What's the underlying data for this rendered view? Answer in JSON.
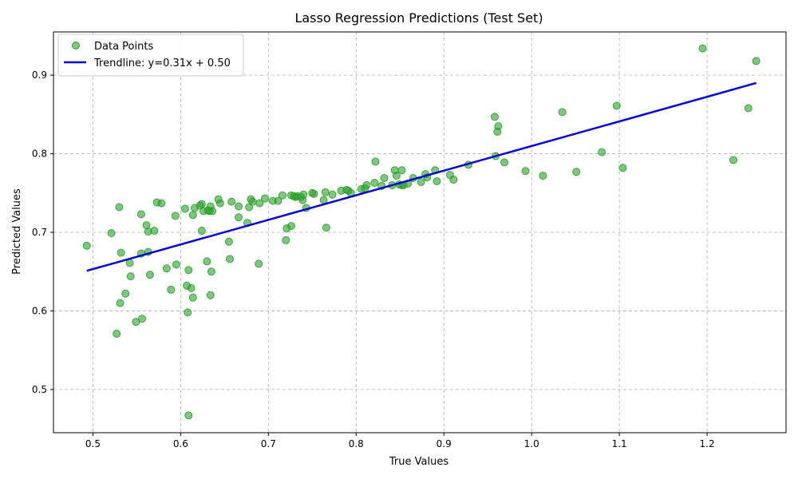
{
  "chart_data": {
    "type": "scatter",
    "title": "Lasso Regression Predictions (Test Set)",
    "xlabel": "True Values",
    "ylabel": "Predicted Values",
    "xlim": [
      0.455,
      1.29
    ],
    "ylim": [
      0.445,
      0.955
    ],
    "xticks": [
      0.5,
      0.6,
      0.7,
      0.8,
      0.9,
      1.0,
      1.1,
      1.2
    ],
    "yticks": [
      0.5,
      0.6,
      0.7,
      0.8,
      0.9
    ],
    "xtick_labels": [
      "0.5",
      "0.6",
      "0.7",
      "0.8",
      "0.9",
      "1.0",
      "1.1",
      "1.2"
    ],
    "ytick_labels": [
      "0.5",
      "0.6",
      "0.7",
      "0.8",
      "0.9"
    ],
    "grid": true,
    "legend_position": "top-left",
    "colors": {
      "points": "#2ca02c",
      "trendline": "#0000dd",
      "grid": "#b0b0b0"
    },
    "series": [
      {
        "name": "Data Points",
        "kind": "scatter",
        "points": [
          [
            0.493,
            0.683
          ],
          [
            0.521,
            0.699
          ],
          [
            0.527,
            0.571
          ],
          [
            0.53,
            0.732
          ],
          [
            0.531,
            0.61
          ],
          [
            0.532,
            0.674
          ],
          [
            0.537,
            0.622
          ],
          [
            0.542,
            0.661
          ],
          [
            0.543,
            0.644
          ],
          [
            0.549,
            0.586
          ],
          [
            0.555,
            0.723
          ],
          [
            0.555,
            0.673
          ],
          [
            0.556,
            0.59
          ],
          [
            0.561,
            0.709
          ],
          [
            0.563,
            0.701
          ],
          [
            0.563,
            0.675
          ],
          [
            0.565,
            0.646
          ],
          [
            0.57,
            0.702
          ],
          [
            0.573,
            0.738
          ],
          [
            0.578,
            0.737
          ],
          [
            0.584,
            0.654
          ],
          [
            0.589,
            0.627
          ],
          [
            0.594,
            0.721
          ],
          [
            0.595,
            0.659
          ],
          [
            0.605,
            0.73
          ],
          [
            0.607,
            0.632
          ],
          [
            0.608,
            0.598
          ],
          [
            0.609,
            0.652
          ],
          [
            0.609,
            0.467
          ],
          [
            0.612,
            0.629
          ],
          [
            0.614,
            0.722
          ],
          [
            0.614,
            0.617
          ],
          [
            0.616,
            0.731
          ],
          [
            0.622,
            0.734
          ],
          [
            0.624,
            0.736
          ],
          [
            0.624,
            0.702
          ],
          [
            0.626,
            0.727
          ],
          [
            0.63,
            0.663
          ],
          [
            0.631,
            0.728
          ],
          [
            0.633,
            0.727
          ],
          [
            0.634,
            0.733
          ],
          [
            0.634,
            0.62
          ],
          [
            0.635,
            0.65
          ],
          [
            0.636,
            0.727
          ],
          [
            0.643,
            0.742
          ],
          [
            0.645,
            0.737
          ],
          [
            0.655,
            0.688
          ],
          [
            0.656,
            0.666
          ],
          [
            0.658,
            0.739
          ],
          [
            0.666,
            0.733
          ],
          [
            0.666,
            0.719
          ],
          [
            0.676,
            0.712
          ],
          [
            0.678,
            0.732
          ],
          [
            0.68,
            0.742
          ],
          [
            0.682,
            0.739
          ],
          [
            0.689,
            0.66
          ],
          [
            0.69,
            0.737
          ],
          [
            0.696,
            0.743
          ],
          [
            0.705,
            0.74
          ],
          [
            0.711,
            0.74
          ],
          [
            0.716,
            0.747
          ],
          [
            0.72,
            0.69
          ],
          [
            0.721,
            0.705
          ],
          [
            0.726,
            0.708
          ],
          [
            0.726,
            0.747
          ],
          [
            0.729,
            0.746
          ],
          [
            0.731,
            0.745
          ],
          [
            0.733,
            0.746
          ],
          [
            0.737,
            0.745
          ],
          [
            0.739,
            0.741
          ],
          [
            0.74,
            0.748
          ],
          [
            0.743,
            0.731
          ],
          [
            0.75,
            0.75
          ],
          [
            0.752,
            0.749
          ],
          [
            0.763,
            0.741
          ],
          [
            0.765,
            0.751
          ],
          [
            0.766,
            0.706
          ],
          [
            0.773,
            0.748
          ],
          [
            0.783,
            0.753
          ],
          [
            0.789,
            0.754
          ],
          [
            0.791,
            0.753
          ],
          [
            0.794,
            0.75
          ],
          [
            0.806,
            0.755
          ],
          [
            0.81,
            0.756
          ],
          [
            0.812,
            0.76
          ],
          [
            0.821,
            0.763
          ],
          [
            0.822,
            0.79
          ],
          [
            0.829,
            0.759
          ],
          [
            0.832,
            0.769
          ],
          [
            0.841,
            0.76
          ],
          [
            0.844,
            0.779
          ],
          [
            0.846,
            0.772
          ],
          [
            0.849,
            0.761
          ],
          [
            0.852,
            0.779
          ],
          [
            0.852,
            0.76
          ],
          [
            0.854,
            0.76
          ],
          [
            0.859,
            0.762
          ],
          [
            0.865,
            0.769
          ],
          [
            0.874,
            0.764
          ],
          [
            0.879,
            0.774
          ],
          [
            0.881,
            0.77
          ],
          [
            0.89,
            0.779
          ],
          [
            0.892,
            0.765
          ],
          [
            0.907,
            0.773
          ],
          [
            0.911,
            0.767
          ],
          [
            0.928,
            0.786
          ],
          [
            0.958,
            0.847
          ],
          [
            0.959,
            0.797
          ],
          [
            0.961,
            0.828
          ],
          [
            0.962,
            0.835
          ],
          [
            0.969,
            0.789
          ],
          [
            0.993,
            0.778
          ],
          [
            1.013,
            0.772
          ],
          [
            1.035,
            0.853
          ],
          [
            1.051,
            0.777
          ],
          [
            1.08,
            0.802
          ],
          [
            1.097,
            0.861
          ],
          [
            1.104,
            0.782
          ],
          [
            1.195,
            0.934
          ],
          [
            1.23,
            0.792
          ],
          [
            1.247,
            0.858
          ],
          [
            1.256,
            0.918
          ]
        ]
      },
      {
        "name": "Trendline: y=0.31x + 0.50",
        "kind": "line",
        "points": [
          [
            0.493,
            0.651
          ],
          [
            1.256,
            0.89
          ]
        ]
      }
    ]
  }
}
